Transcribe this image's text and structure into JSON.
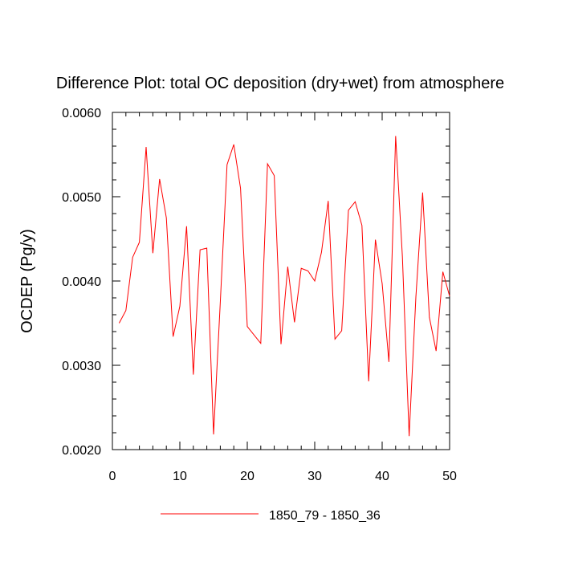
{
  "chart_data": {
    "type": "line",
    "title": "Difference Plot: total OC deposition (dry+wet) from atmosphere",
    "xlabel": "",
    "ylabel": "OCDEP  (Pg/y)",
    "xlim": [
      0,
      50
    ],
    "ylim": [
      0.002,
      0.006
    ],
    "x_ticks": [
      0,
      10,
      20,
      30,
      40,
      50
    ],
    "x_tick_labels": [
      "0",
      "10",
      "20",
      "30",
      "40",
      "50"
    ],
    "y_ticks": [
      0.002,
      0.003,
      0.004,
      0.005,
      0.006
    ],
    "y_tick_labels": [
      "0.0020",
      "0.0030",
      "0.0040",
      "0.0050",
      "0.0060"
    ],
    "grid": false,
    "legend_position": "bottom-center",
    "series": [
      {
        "name": "1850_79 - 1850_36",
        "color": "#ff0000",
        "x": [
          1,
          2,
          3,
          4,
          5,
          6,
          7,
          8,
          9,
          10,
          11,
          12,
          13,
          14,
          15,
          16,
          17,
          18,
          19,
          20,
          21,
          22,
          23,
          24,
          25,
          26,
          27,
          28,
          29,
          30,
          31,
          32,
          33,
          34,
          35,
          36,
          37,
          38,
          39,
          40,
          41,
          42,
          43,
          44,
          45,
          46,
          47,
          48,
          49,
          50
        ],
        "y": [
          0.0035,
          0.00365,
          0.00428,
          0.00446,
          0.00559,
          0.00433,
          0.00521,
          0.00475,
          0.00334,
          0.0037,
          0.00465,
          0.00289,
          0.00437,
          0.00439,
          0.00218,
          0.00375,
          0.00538,
          0.00562,
          0.0051,
          0.00346,
          0.00336,
          0.00326,
          0.00539,
          0.00525,
          0.00325,
          0.00417,
          0.00351,
          0.00415,
          0.00412,
          0.004,
          0.00434,
          0.00495,
          0.00331,
          0.00341,
          0.00484,
          0.00494,
          0.00466,
          0.00281,
          0.00449,
          0.00397,
          0.00304,
          0.00572,
          0.00429,
          0.00216,
          0.00381,
          0.00505,
          0.00357,
          0.00317,
          0.00411,
          0.00382
        ]
      }
    ]
  }
}
